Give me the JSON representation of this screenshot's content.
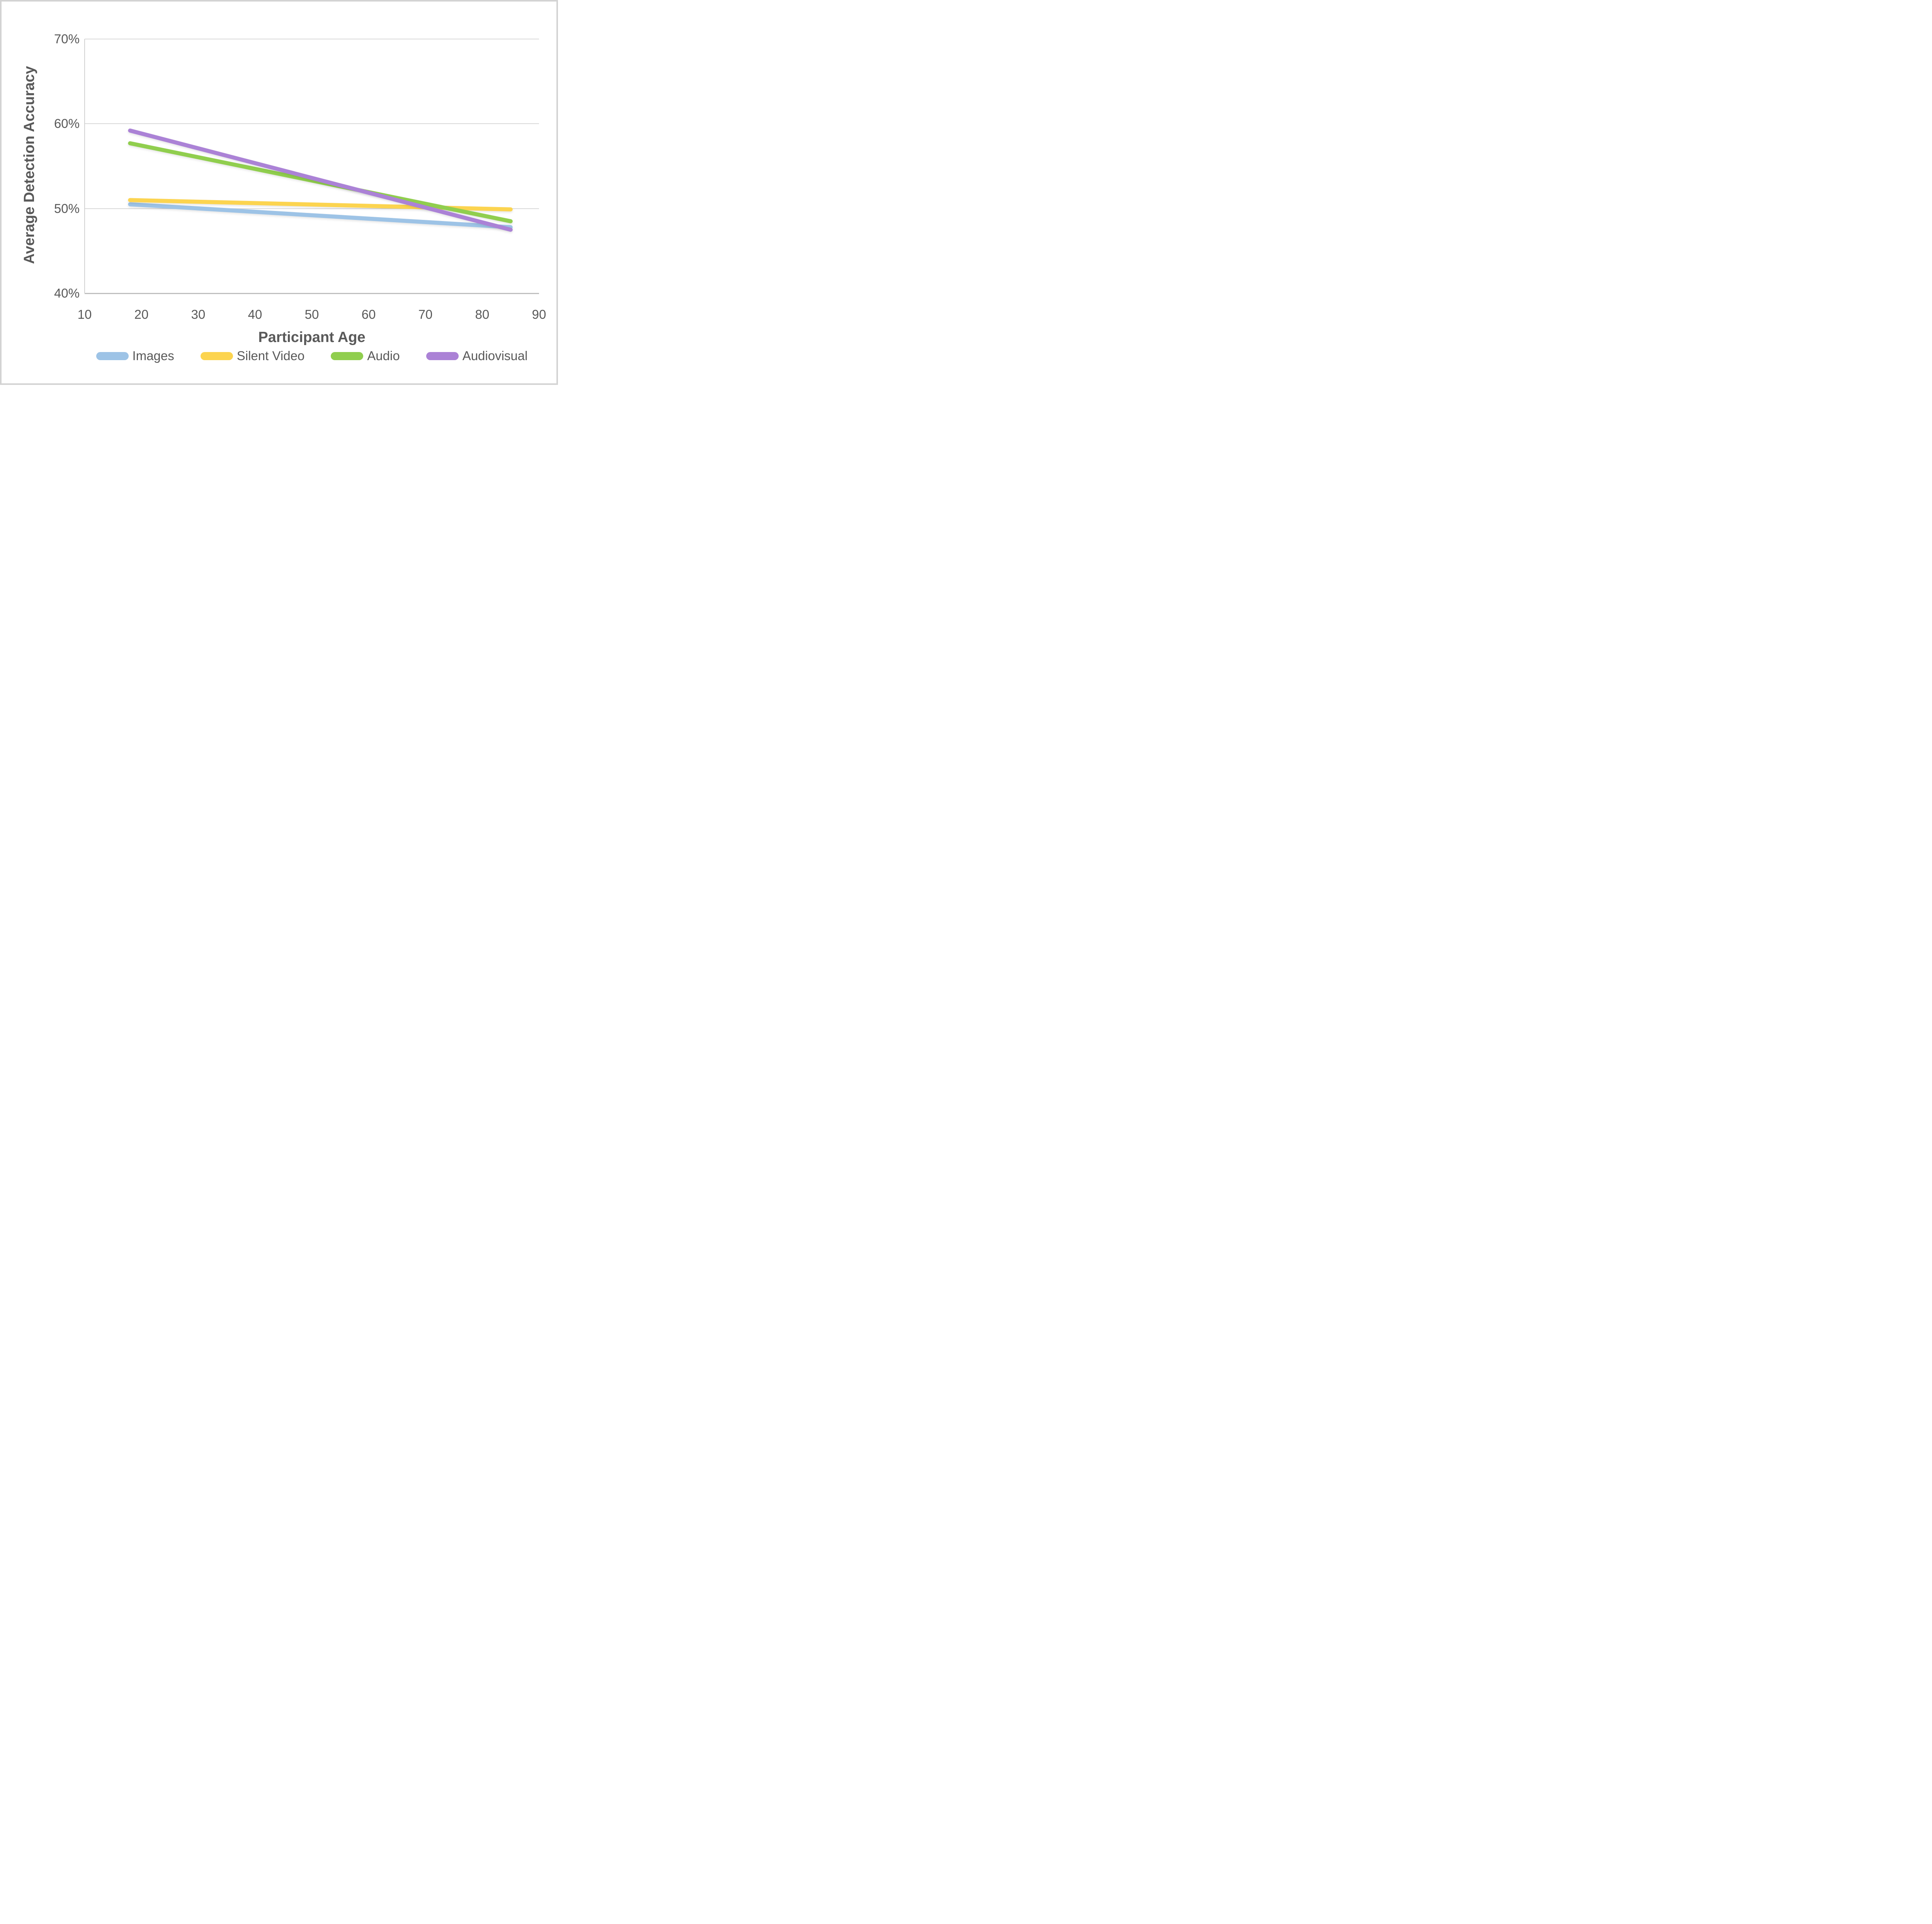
{
  "figure": {
    "background_color": "#ffffff",
    "frame_color": "#d3d3d3",
    "text_color": "#595959",
    "gridline_color": "#d9d9d9",
    "axis_line_color": "#bfbfbf"
  },
  "axes": {
    "y_title": "Average Detection Accuracy",
    "x_title": "Participant Age",
    "y_ticks": [
      {
        "value": 70,
        "label": "70%"
      },
      {
        "value": 60,
        "label": "60%"
      },
      {
        "value": 50,
        "label": "50%"
      },
      {
        "value": 40,
        "label": "40%"
      }
    ],
    "x_ticks": [
      {
        "value": 10,
        "label": "10"
      },
      {
        "value": 20,
        "label": "20"
      },
      {
        "value": 30,
        "label": "30"
      },
      {
        "value": 40,
        "label": "40"
      },
      {
        "value": 50,
        "label": "50"
      },
      {
        "value": 60,
        "label": "60"
      },
      {
        "value": 70,
        "label": "70"
      },
      {
        "value": 80,
        "label": "80"
      },
      {
        "value": 90,
        "label": "90"
      }
    ]
  },
  "chart_data": {
    "type": "line",
    "title": "",
    "xlabel": "Participant Age",
    "ylabel": "Average Detection Accuracy",
    "xlim": [
      10,
      90
    ],
    "ylim": [
      40,
      70
    ],
    "grid": "horizontal",
    "legend_position": "bottom",
    "series": [
      {
        "name": "Images",
        "color": "#9dc3e6",
        "x": [
          18,
          85
        ],
        "values": [
          50.5,
          47.8
        ]
      },
      {
        "name": "Silent Video",
        "color": "#fcd44f",
        "x": [
          18,
          85
        ],
        "values": [
          51.0,
          49.9
        ]
      },
      {
        "name": "Audio",
        "color": "#90ce4e",
        "x": [
          18,
          85
        ],
        "values": [
          57.7,
          48.5
        ]
      },
      {
        "name": "Audiovisual",
        "color": "#ab82d6",
        "x": [
          18,
          85
        ],
        "values": [
          59.2,
          47.5
        ]
      }
    ]
  }
}
